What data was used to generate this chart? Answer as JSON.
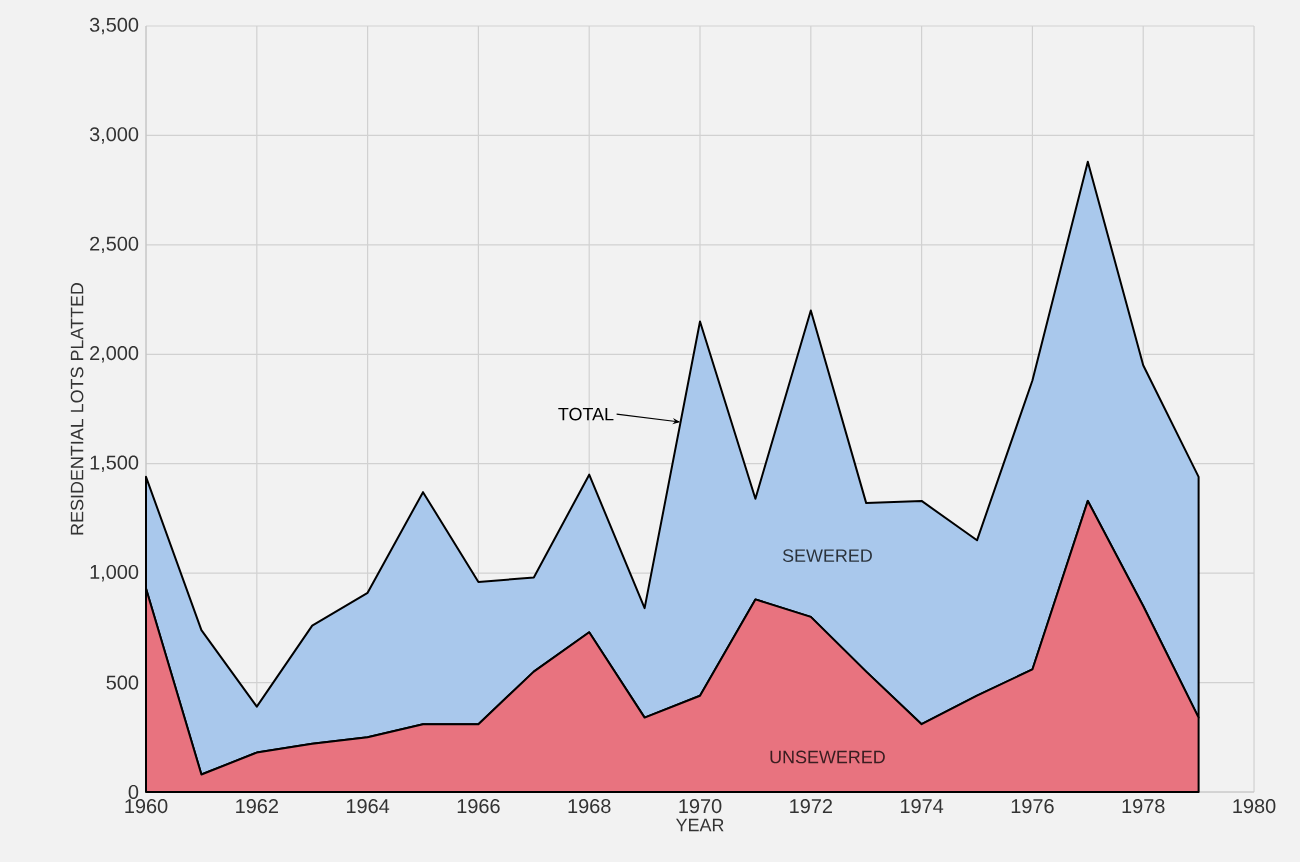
{
  "chart_data": {
    "type": "area",
    "stacked": true,
    "xlabel": "YEAR",
    "ylabel": "RESIDENTIAL LOTS PLATTED",
    "x": [
      1960,
      1961,
      1962,
      1963,
      1964,
      1965,
      1966,
      1967,
      1968,
      1969,
      1970,
      1971,
      1972,
      1973,
      1974,
      1975,
      1976,
      1977,
      1978,
      1979
    ],
    "series": [
      {
        "name": "UNSEWERED",
        "color": "#e8737f",
        "values": [
          930,
          80,
          180,
          220,
          250,
          310,
          310,
          550,
          730,
          340,
          440,
          880,
          800,
          550,
          310,
          440,
          560,
          1330,
          850,
          340
        ]
      },
      {
        "name": "SEWERED",
        "color": "#a9c8ec",
        "values": [
          510,
          660,
          210,
          540,
          660,
          1060,
          650,
          430,
          720,
          500,
          1710,
          460,
          1400,
          770,
          1020,
          710,
          1320,
          1550,
          1100,
          1100
        ]
      }
    ],
    "annotations": [
      {
        "text": "TOTAL",
        "x": 1969.65,
        "y": 1690
      }
    ],
    "xlim": [
      1960,
      1980
    ],
    "xticks": [
      1960,
      1962,
      1964,
      1966,
      1968,
      1970,
      1972,
      1974,
      1976,
      1978,
      1980
    ],
    "ylim": [
      0,
      3500
    ],
    "yticks": [
      0,
      {
        "value": 500,
        "label": "500"
      },
      {
        "value": 1000,
        "label": "1,000"
      },
      {
        "value": 1500,
        "label": "1,500"
      },
      {
        "value": 2000,
        "label": "2,000"
      },
      {
        "value": 2500,
        "label": "2,500"
      },
      {
        "value": 3000,
        "label": "3,000"
      },
      {
        "value": 3500,
        "label": "3,500"
      }
    ],
    "grid": true
  }
}
